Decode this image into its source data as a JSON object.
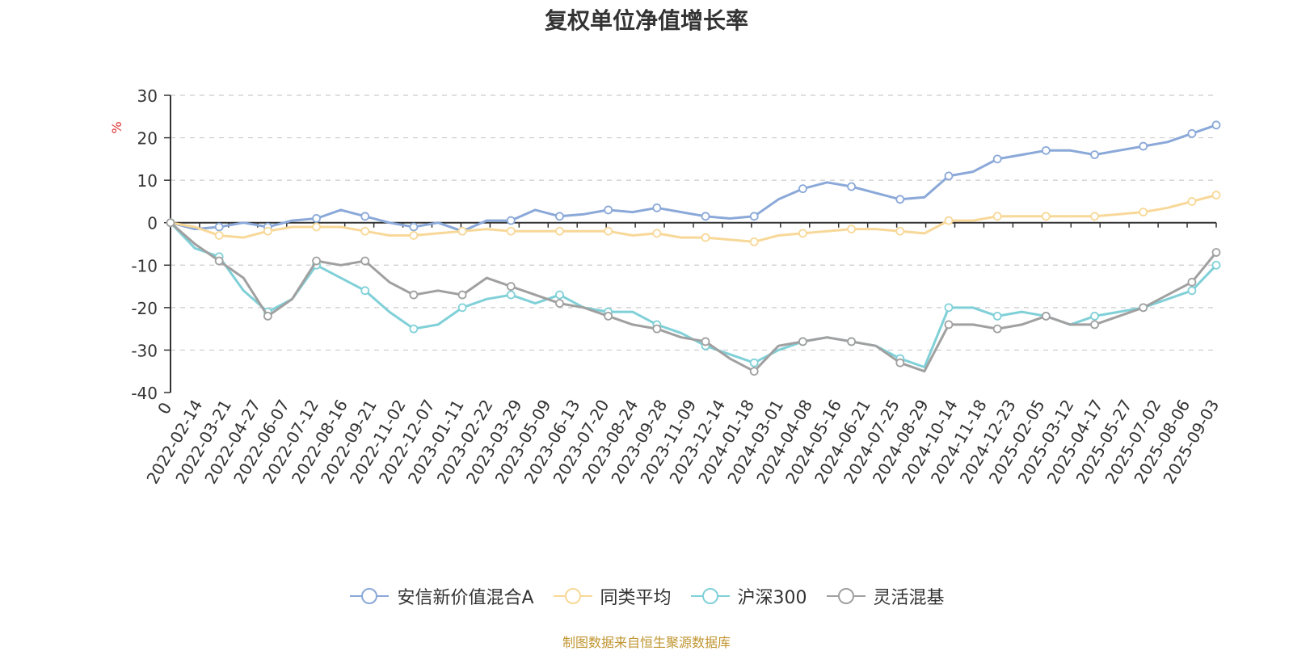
{
  "chart_data": {
    "type": "line",
    "title": "复权单位净值增长率",
    "ylabel": "%",
    "xlabel": "",
    "ylim": [
      -40,
      30
    ],
    "yticks": [
      30,
      20,
      10,
      0,
      -10,
      -20,
      -30,
      -40
    ],
    "x_start_label": "0",
    "x_ticks": [
      "2022-02-14",
      "2022-03-21",
      "2022-04-27",
      "2022-06-07",
      "2022-07-12",
      "2022-08-16",
      "2022-09-21",
      "2022-11-02",
      "2022-12-07",
      "2023-01-11",
      "2023-02-22",
      "2023-03-29",
      "2023-05-09",
      "2023-06-13",
      "2023-07-20",
      "2023-08-24",
      "2023-09-28",
      "2023-11-09",
      "2023-12-14",
      "2024-01-18",
      "2024-03-01",
      "2024-04-08",
      "2024-05-16",
      "2024-06-21",
      "2024-07-25",
      "2024-08-29",
      "2024-10-14",
      "2024-11-18",
      "2024-12-23",
      "2025-02-05",
      "2025-03-12",
      "2025-04-17",
      "2025-05-27",
      "2025-07-02",
      "2025-08-06",
      "2025-09-03"
    ],
    "grid": true,
    "legend_position": "bottom",
    "series": [
      {
        "name": "安信新价值混合A",
        "color": "#8aa8d8",
        "values": [
          0,
          -1.5,
          -1,
          0,
          -1,
          0.5,
          1,
          3,
          1.5,
          0,
          -1,
          0,
          -2,
          0.5,
          0.5,
          3,
          1.5,
          2,
          3,
          2.5,
          3.5,
          2.5,
          1.5,
          1,
          1.5,
          5.5,
          8,
          9.5,
          8.5,
          7,
          5.5,
          6,
          11,
          12,
          15,
          16,
          17,
          17,
          16,
          17,
          18,
          19,
          21,
          23
        ]
      },
      {
        "name": "同类平均",
        "color": "#f8d898",
        "values": [
          0,
          -1,
          -3,
          -3.5,
          -2,
          -1,
          -1,
          -1,
          -2,
          -3,
          -3,
          -2.5,
          -2,
          -1.5,
          -2,
          -2,
          -2,
          -2,
          -2,
          -3,
          -2.5,
          -3.5,
          -3.5,
          -4,
          -4.5,
          -3,
          -2.5,
          -2,
          -1.5,
          -1.5,
          -2,
          -2.5,
          0.5,
          0.5,
          1.5,
          1.5,
          1.5,
          1.5,
          1.5,
          2,
          2.5,
          3.5,
          5,
          6.5
        ]
      },
      {
        "name": "沪深300",
        "color": "#80d0d8",
        "values": [
          0,
          -6,
          -8,
          -16,
          -21,
          -18,
          -10,
          -13,
          -16,
          -21,
          -25,
          -24,
          -20,
          -18,
          -17,
          -19,
          -17,
          -20,
          -21,
          -21,
          -24,
          -26,
          -29,
          -31,
          -33,
          -30,
          -28,
          -27,
          -28,
          -29,
          -32,
          -34,
          -20,
          -20,
          -22,
          -21,
          -22,
          -24,
          -22,
          -21,
          -20,
          -18,
          -16,
          -10
        ]
      },
      {
        "name": "灵活混基",
        "color": "#a0a0a0",
        "values": [
          0,
          -5,
          -9,
          -13,
          -22,
          -18,
          -9,
          -10,
          -9,
          -14,
          -17,
          -16,
          -17,
          -13,
          -15,
          -17,
          -19,
          -20,
          -22,
          -24,
          -25,
          -27,
          -28,
          -32,
          -35,
          -29,
          -28,
          -27,
          -28,
          -29,
          -33,
          -35,
          -24,
          -24,
          -25,
          -24,
          -22,
          -24,
          -24,
          -22,
          -20,
          -17,
          -14,
          -7
        ]
      }
    ]
  },
  "source_note": "制图数据来自恒生聚源数据库"
}
